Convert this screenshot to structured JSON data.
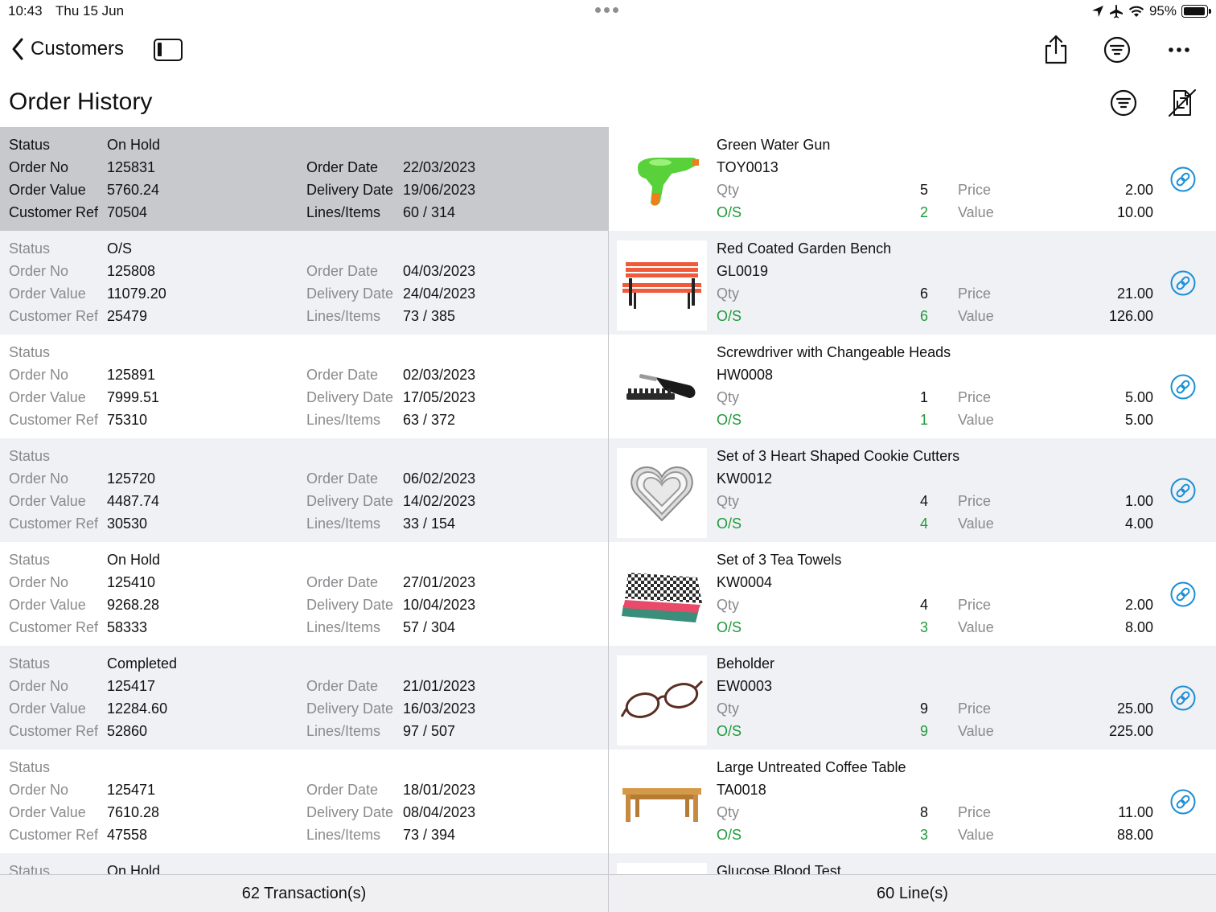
{
  "status_bar": {
    "time": "10:43",
    "date": "Thu 15 Jun",
    "battery": "95%",
    "battery_level": 0.95
  },
  "nav": {
    "back_label": "Customers"
  },
  "page": {
    "title": "Order History"
  },
  "labels": {
    "status": "Status",
    "order_no": "Order No",
    "order_value": "Order Value",
    "customer_ref": "Customer Ref",
    "order_date": "Order Date",
    "delivery_date": "Delivery Date",
    "lines_items": "Lines/Items",
    "qty": "Qty",
    "os": "O/S",
    "price": "Price",
    "value": "Value"
  },
  "orders": [
    {
      "status": "On Hold",
      "order_no": "125831",
      "order_value": "5760.24",
      "customer_ref": "70504",
      "order_date": "22/03/2023",
      "delivery_date": "19/06/2023",
      "lines_items": "60 / 314"
    },
    {
      "status": "O/S",
      "order_no": "125808",
      "order_value": "11079.20",
      "customer_ref": "25479",
      "order_date": "04/03/2023",
      "delivery_date": "24/04/2023",
      "lines_items": "73 / 385"
    },
    {
      "status": "",
      "order_no": "125891",
      "order_value": "7999.51",
      "customer_ref": "75310",
      "order_date": "02/03/2023",
      "delivery_date": "17/05/2023",
      "lines_items": "63 / 372"
    },
    {
      "status": "",
      "order_no": "125720",
      "order_value": "4487.74",
      "customer_ref": "30530",
      "order_date": "06/02/2023",
      "delivery_date": "14/02/2023",
      "lines_items": "33 / 154"
    },
    {
      "status": "On Hold",
      "order_no": "125410",
      "order_value": "9268.28",
      "customer_ref": "58333",
      "order_date": "27/01/2023",
      "delivery_date": "10/04/2023",
      "lines_items": "57 / 304"
    },
    {
      "status": "Completed",
      "order_no": "125417",
      "order_value": "12284.60",
      "customer_ref": "52860",
      "order_date": "21/01/2023",
      "delivery_date": "16/03/2023",
      "lines_items": "97 / 507"
    },
    {
      "status": "",
      "order_no": "125471",
      "order_value": "7610.28",
      "customer_ref": "47558",
      "order_date": "18/01/2023",
      "delivery_date": "08/04/2023",
      "lines_items": "73 / 394"
    },
    {
      "status": "On Hold",
      "order_no": "",
      "order_value": "",
      "customer_ref": "",
      "order_date": "",
      "delivery_date": "",
      "lines_items": ""
    }
  ],
  "lines": [
    {
      "name": "Green Water Gun",
      "code": "TOY0013",
      "qty": "5",
      "os": "2",
      "price": "2.00",
      "value": "10.00",
      "image": "water-gun"
    },
    {
      "name": "Red Coated Garden Bench",
      "code": "GL0019",
      "qty": "6",
      "os": "6",
      "price": "21.00",
      "value": "126.00",
      "image": "bench"
    },
    {
      "name": "Screwdriver with Changeable Heads",
      "code": "HW0008",
      "qty": "1",
      "os": "1",
      "price": "5.00",
      "value": "5.00",
      "image": "screwdriver"
    },
    {
      "name": "Set of 3 Heart Shaped Cookie Cutters",
      "code": "KW0012",
      "qty": "4",
      "os": "4",
      "price": "1.00",
      "value": "4.00",
      "image": "cookie-cutter"
    },
    {
      "name": "Set of 3 Tea Towels",
      "code": "KW0004",
      "qty": "4",
      "os": "3",
      "price": "2.00",
      "value": "8.00",
      "image": "tea-towels"
    },
    {
      "name": "Beholder",
      "code": "EW0003",
      "qty": "9",
      "os": "9",
      "price": "25.00",
      "value": "225.00",
      "image": "glasses"
    },
    {
      "name": "Large Untreated Coffee Table",
      "code": "TA0018",
      "qty": "8",
      "os": "3",
      "price": "11.00",
      "value": "88.00",
      "image": "coffee-table"
    },
    {
      "name": "Glucose Blood Test",
      "code": "",
      "qty": "",
      "os": "",
      "price": "",
      "value": "",
      "image": "glucose-test"
    }
  ],
  "footer": {
    "transactions": "62 Transaction(s)",
    "lines": "60 Line(s)"
  },
  "colors": {
    "accent": "#1a8fd6",
    "os_green": "#1f9a3a",
    "row_alt": "#f0f1f5",
    "row_selected": "#c8c9cd"
  }
}
